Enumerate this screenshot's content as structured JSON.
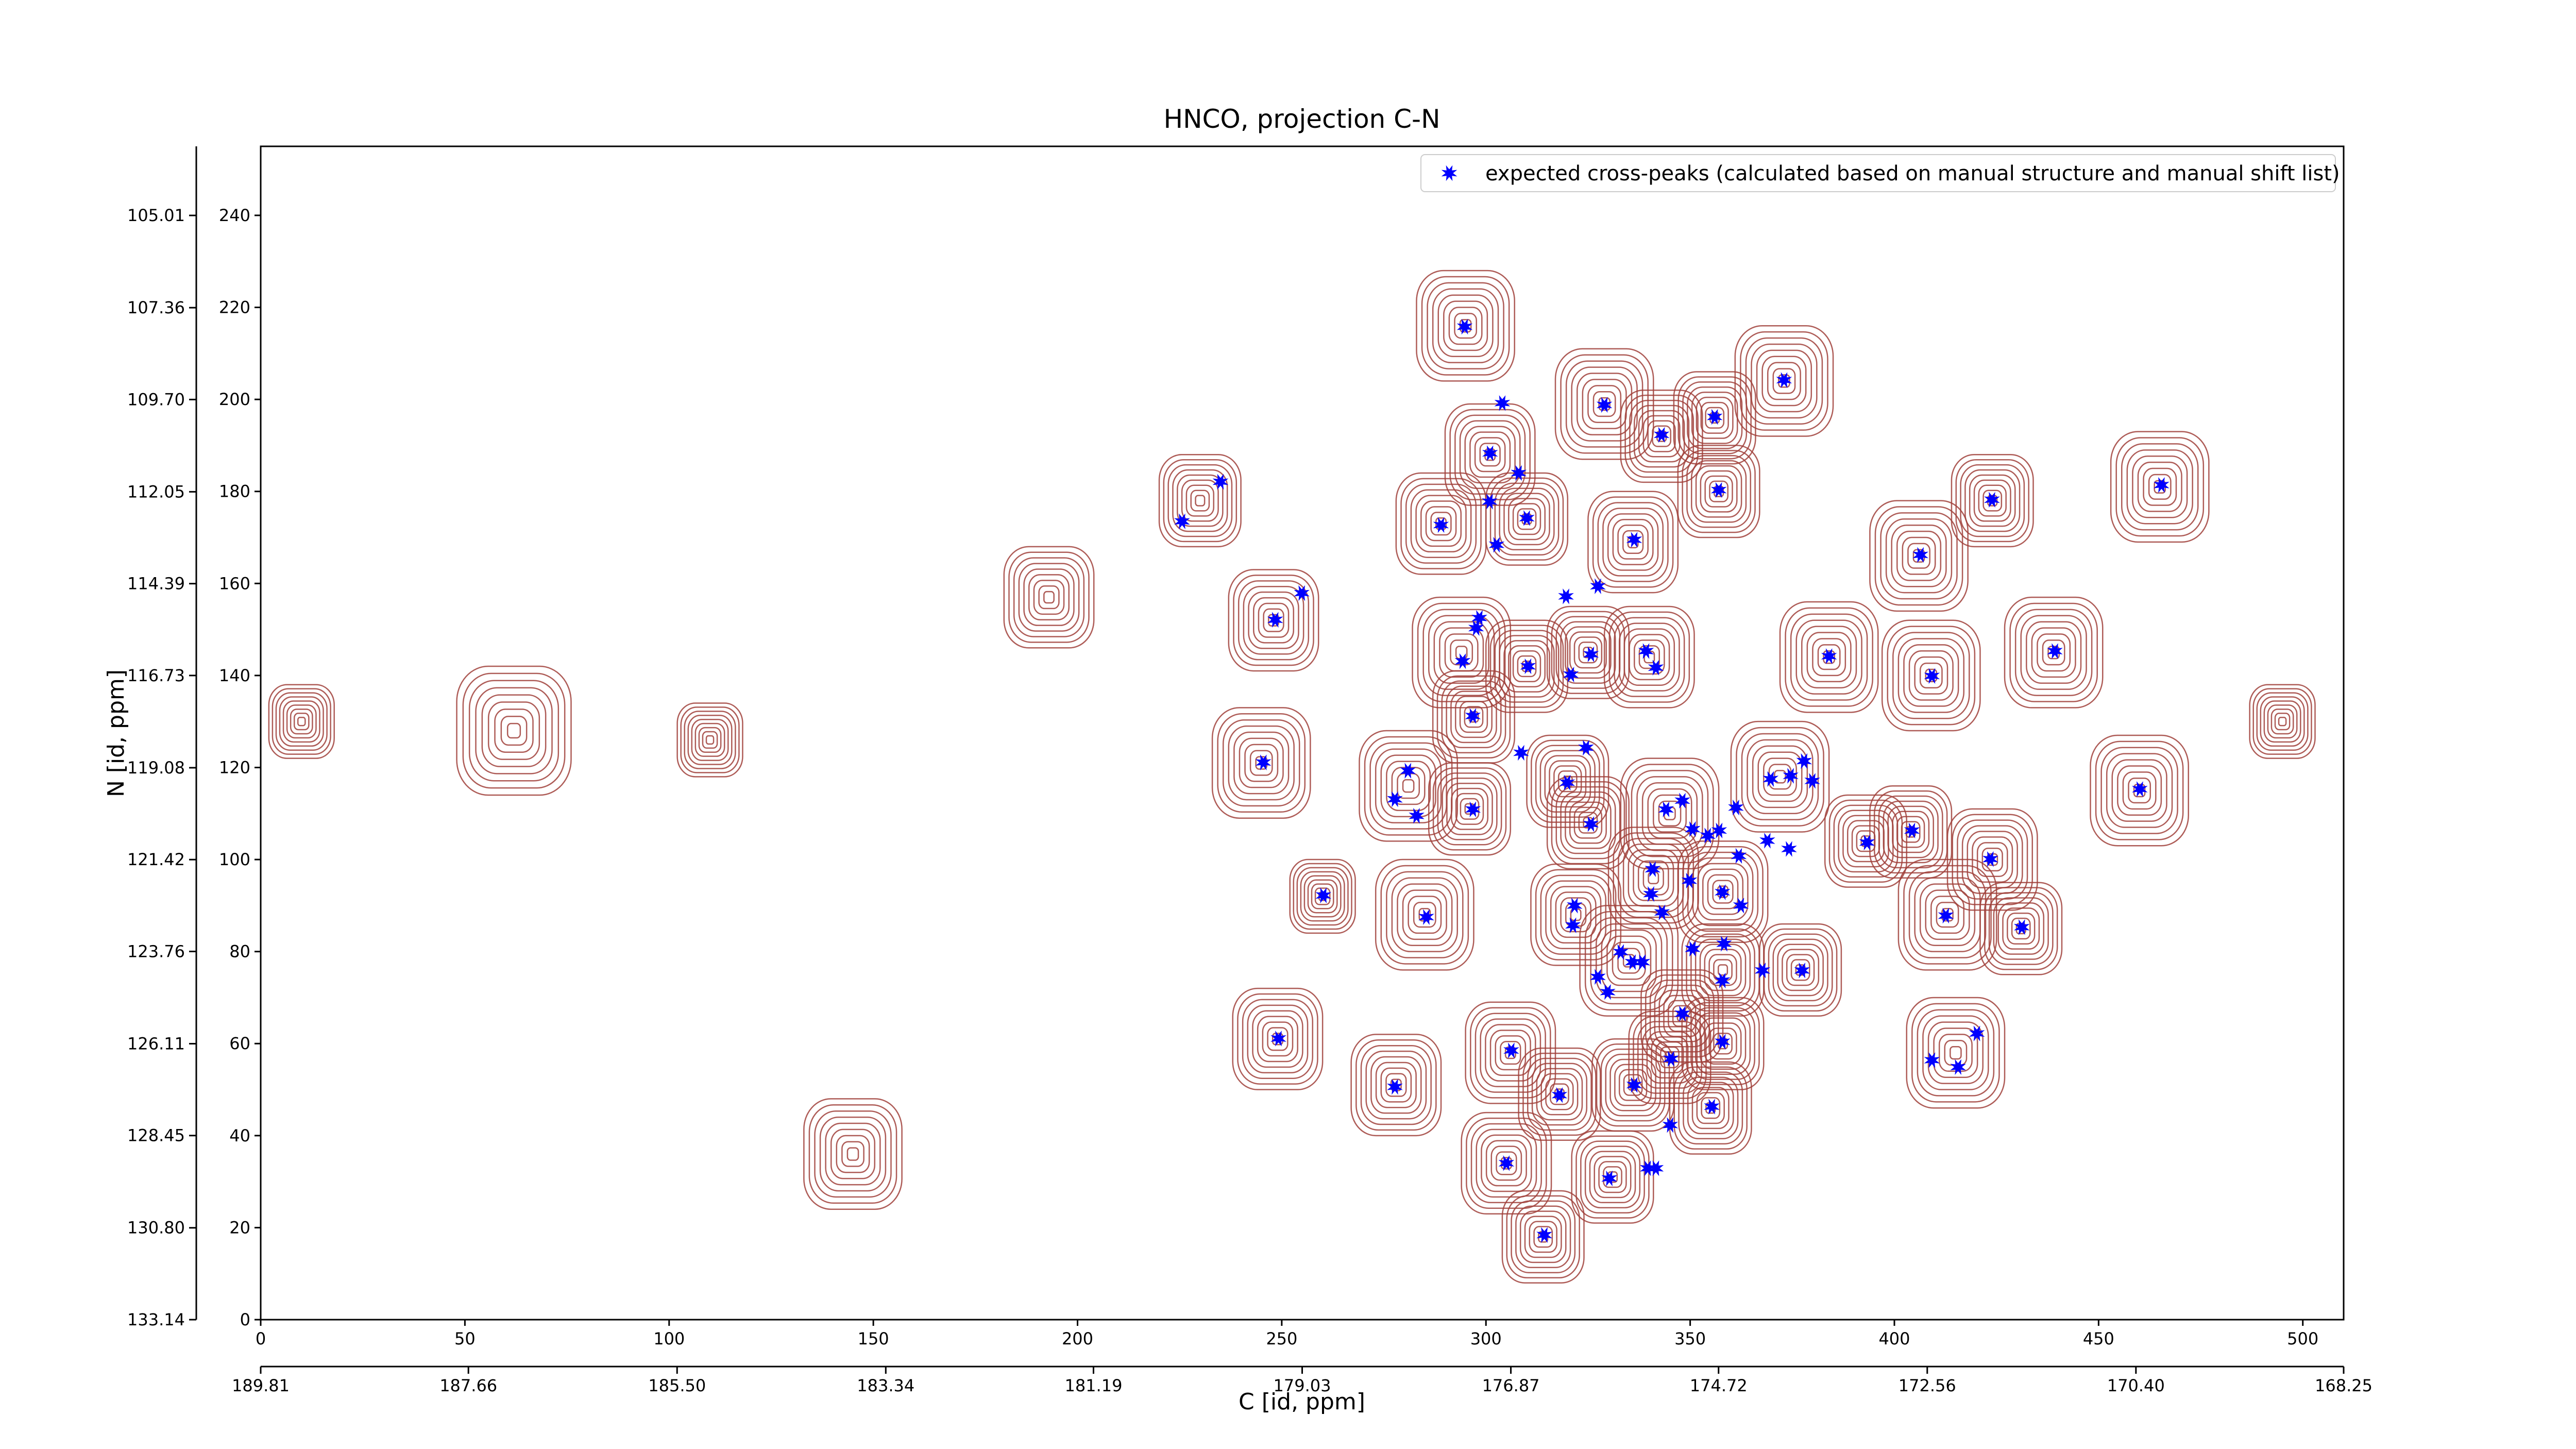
{
  "chart_data": {
    "type": "scatter",
    "title": "HNCO, projection C-N",
    "x_label": "C [id, ppm]",
    "y_label": "N [id, ppm]",
    "xlim": [
      0,
      510
    ],
    "ylim": [
      0,
      255
    ],
    "xticks": [
      0,
      50,
      100,
      150,
      200,
      250,
      300,
      350,
      400,
      450,
      500
    ],
    "yticks": [
      0,
      20,
      40,
      60,
      80,
      100,
      120,
      140,
      160,
      180,
      200,
      220,
      240
    ],
    "x2lim": [
      189.81,
      168.25
    ],
    "x2ticks": [
      189.81,
      187.66,
      {
        "value": 185.5,
        "label": "185.50"
      },
      183.34,
      181.19,
      179.03,
      176.87,
      174.72,
      172.56,
      {
        "value": 170.4,
        "label": "170.40"
      },
      168.25
    ],
    "y2lim": [
      133.14,
      103.25
    ],
    "y2ticks": [
      105.01,
      107.36,
      {
        "value": 109.7,
        "label": "109.70"
      },
      112.05,
      114.39,
      116.73,
      119.08,
      121.42,
      123.76,
      126.11,
      128.45,
      {
        "value": 130.8,
        "label": "130.80"
      },
      133.14
    ],
    "legend": "upper right",
    "series": [
      {
        "name": "expected cross-peaks (calculated based on manual structure and manual shift list)",
        "color": "#0000ff",
        "x": [
          294.8,
          304,
          329,
          373,
          343,
          356,
          357,
          301,
          308,
          235,
          225.6,
          423.9,
          465.4,
          300.9,
          289,
          310,
          302.6,
          336.3,
          406.4,
          254.9,
          327.4,
          319.6,
          248.4,
          298.4,
          297.6,
          294.3,
          310.3,
          320.8,
          325.7,
          339.2,
          341.6,
          384,
          409.2,
          439.3,
          296.8,
          308.6,
          324.5,
          245.5,
          280.9,
          319.9,
          369.7,
          374.6,
          377.9,
          379.9,
          460.1,
          277.7,
          283,
          296.8,
          325.7,
          344.1,
          348.1,
          361.2,
          350.6,
          354.3,
          357.1,
          361.9,
          368.9,
          374.2,
          393.3,
          404.3,
          423.5,
          340.8,
          349.8,
          357.9,
          362.4,
          340.4,
          260.2,
          321.7,
          285.4,
          343.1,
          321.3,
          412.6,
          431.2,
          350.6,
          358.3,
          333,
          335.9,
          338.3,
          327.4,
          357.9,
          367.7,
          377.4,
          329.8,
          348.1,
          306.2,
          345.3,
          357.9,
          249.2,
          420.2,
          409.2,
          415.6,
          277.7,
          336.3,
          318,
          355.3,
          345.1,
          305,
          330.2,
          339.6,
          341.6,
          314.3
        ],
        "y": [
          215.8,
          199.2,
          198.8,
          204.2,
          192.3,
          196.2,
          180.3,
          188.3,
          184,
          182.1,
          173.5,
          178.2,
          181.4,
          177.8,
          172.7,
          174.2,
          168.4,
          169.5,
          166.2,
          157.9,
          159.4,
          157.2,
          152.1,
          152.5,
          150.3,
          143.1,
          142,
          140.2,
          144.6,
          145.3,
          141.7,
          144.2,
          139.9,
          145.3,
          131.2,
          123.2,
          124.3,
          121.1,
          119.3,
          116.7,
          117.5,
          118.2,
          121.4,
          117.1,
          115.3,
          113.1,
          109.5,
          110.9,
          107.7,
          110.9,
          112.8,
          111.3,
          106.6,
          105.2,
          106.3,
          100.8,
          104.1,
          102.3,
          103.7,
          106.3,
          100.1,
          97.9,
          95.4,
          92.9,
          90,
          92.5,
          92.2,
          90,
          87.5,
          88.5,
          85.7,
          87.8,
          85.3,
          80.6,
          81.7,
          79.9,
          77.7,
          77.7,
          74.5,
          73.7,
          75.9,
          75.9,
          71.2,
          66.5,
          58.5,
          56.7,
          60.4,
          61.1,
          62.2,
          56.4,
          54.9,
          50.6,
          51,
          48.8,
          46.3,
          42.3,
          34,
          30.7,
          32.9,
          32.9,
          18.4
        ]
      }
    ],
    "contours": {
      "color": "#a0403a",
      "x": [
        295,
        329,
        343,
        356,
        373,
        357,
        301,
        289,
        310,
        336,
        406,
        424,
        465,
        230,
        193,
        248,
        294,
        310,
        325,
        340,
        384,
        409,
        439,
        297,
        245,
        281,
        296,
        320,
        325,
        345,
        372,
        460,
        393,
        404,
        424,
        341,
        358,
        260,
        285,
        322,
        413,
        431,
        335,
        358,
        377,
        348,
        249,
        306,
        345,
        358,
        415,
        278,
        318,
        336,
        355,
        305,
        331,
        314,
        10,
        62,
        110,
        145,
        495
      ],
      "y": [
        216,
        199,
        192,
        196,
        204,
        180,
        188,
        173,
        174,
        169,
        166,
        178,
        181,
        178,
        157,
        152,
        145,
        142,
        145,
        144,
        144,
        140,
        145,
        131,
        121,
        116,
        111,
        117,
        108,
        110,
        118,
        115,
        104,
        106,
        100,
        96,
        93,
        92,
        88,
        88,
        88,
        85,
        78,
        76,
        76,
        66,
        61,
        58,
        57,
        60,
        58,
        51,
        49,
        51,
        46,
        34,
        31,
        18,
        130,
        128,
        126,
        36,
        130
      ],
      "size": [
        12,
        12,
        10,
        10,
        12,
        10,
        11,
        11,
        10,
        11,
        12,
        10,
        12,
        10,
        11,
        11,
        12,
        10,
        10,
        11,
        12,
        12,
        12,
        10,
        12,
        12,
        10,
        10,
        10,
        12,
        12,
        12,
        10,
        10,
        11,
        11,
        11,
        8,
        12,
        11,
        12,
        10,
        12,
        10,
        10,
        10,
        11,
        11,
        10,
        10,
        12,
        11,
        10,
        10,
        10,
        11,
        10,
        10,
        8,
        14,
        8,
        12,
        8
      ]
    }
  }
}
